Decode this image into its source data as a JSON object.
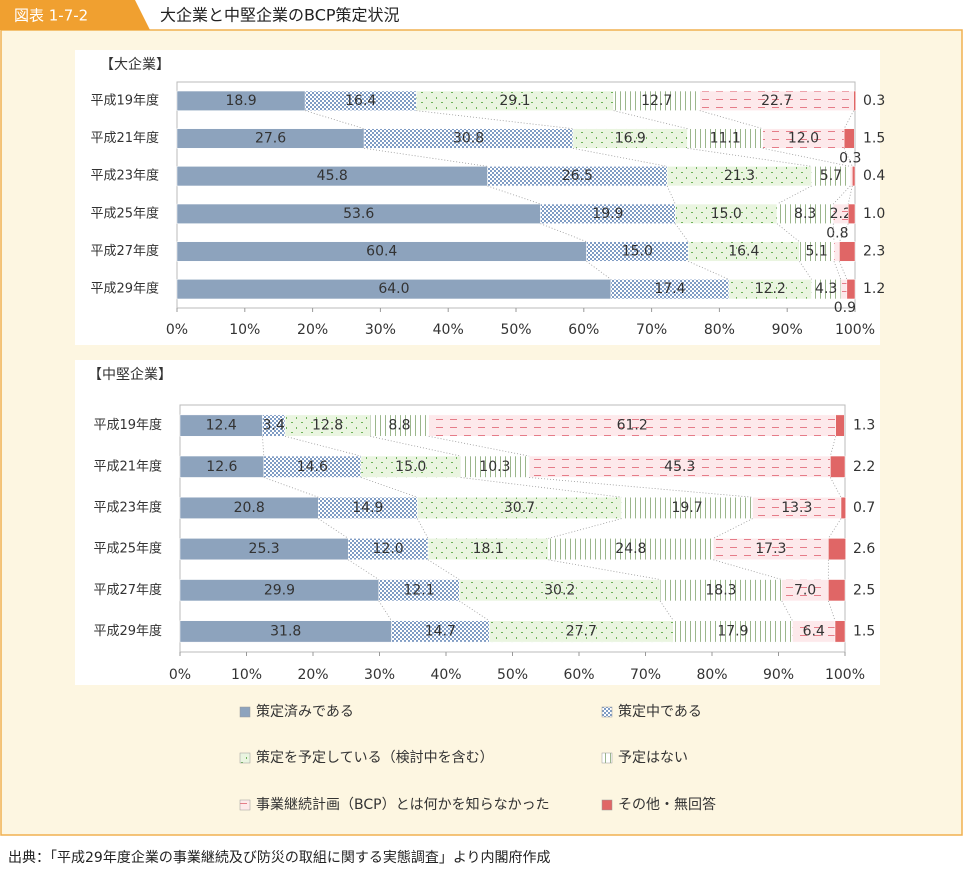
{
  "header": {
    "label": "図表 1-7-2",
    "title": "大企業と中堅企業のBCP策定状況"
  },
  "chart_data": [
    {
      "type": "bar",
      "stacked": true,
      "subtitle": "【大企業】",
      "categories": [
        "平成19年度",
        "平成21年度",
        "平成23年度",
        "平成25年度",
        "平成27年度",
        "平成29年度"
      ],
      "series": [
        {
          "name": "策定済みである",
          "color": "#8da3bd",
          "values": [
            18.9,
            27.6,
            45.8,
            53.6,
            60.4,
            64.0
          ],
          "value_labels": [
            "18.9",
            "27.6",
            "45.8",
            "53.6",
            "60.4",
            "64.0"
          ]
        },
        {
          "name": "策定中である",
          "color": "#7f9cc4",
          "values": [
            16.4,
            30.8,
            26.5,
            19.9,
            15.0,
            17.4
          ],
          "value_labels": [
            "16.4",
            "30.8",
            "26.5",
            "19.9",
            "15.0",
            "17.4"
          ]
        },
        {
          "name": "策定を予定している（検討中を含む）",
          "color": "#6fb35a",
          "values": [
            29.1,
            16.9,
            21.3,
            15.0,
            16.4,
            12.2
          ],
          "value_labels": [
            "29.1",
            "16.9",
            "21.3",
            "15.0",
            "16.4",
            "12.2"
          ]
        },
        {
          "name": "予定はない",
          "color": "#9bb68c",
          "values": [
            12.7,
            11.1,
            5.7,
            8.3,
            5.1,
            4.3
          ],
          "value_labels": [
            "12.7",
            "11.1",
            "5.7",
            "8.3",
            "5.1",
            "4.3"
          ]
        },
        {
          "name": "事業継続計画（BCP）とは何かを知らなかった",
          "color": "#e57c88",
          "values": [
            22.7,
            12.0,
            0.3,
            2.2,
            0.8,
            0.9
          ],
          "value_labels": [
            "22.7",
            "12.0",
            "0.3",
            "2.2",
            "0.8",
            "0.9"
          ]
        },
        {
          "name": "その他・無回答",
          "color": "#e06666",
          "values": [
            0.3,
            1.5,
            0.4,
            1.0,
            2.3,
            1.2
          ],
          "value_labels": [
            "0.3",
            "1.5",
            "0.4",
            "1.0",
            "2.3",
            "1.2"
          ]
        }
      ],
      "xlim": [
        0,
        100
      ],
      "xticks": [
        {
          "value": 0,
          "label": "0%"
        },
        {
          "value": 10,
          "label": "10%"
        },
        {
          "value": 20,
          "label": "20%"
        },
        {
          "value": 30,
          "label": "30%"
        },
        {
          "value": 40,
          "label": "40%"
        },
        {
          "value": 50,
          "label": "50%"
        },
        {
          "value": 60,
          "label": "60%"
        },
        {
          "value": 70,
          "label": "70%"
        },
        {
          "value": 80,
          "label": "80%"
        },
        {
          "value": 90,
          "label": "90%"
        },
        {
          "value": 100,
          "label": "100%"
        }
      ]
    },
    {
      "type": "bar",
      "stacked": true,
      "subtitle": "【中堅企業】",
      "categories": [
        "平成19年度",
        "平成21年度",
        "平成23年度",
        "平成25年度",
        "平成27年度",
        "平成29年度"
      ],
      "series": [
        {
          "name": "策定済みである",
          "color": "#8da3bd",
          "values": [
            12.4,
            12.6,
            20.8,
            25.3,
            29.9,
            31.8
          ],
          "value_labels": [
            "12.4",
            "12.6",
            "20.8",
            "25.3",
            "29.9",
            "31.8"
          ]
        },
        {
          "name": "策定中である",
          "color": "#7f9cc4",
          "values": [
            3.4,
            14.6,
            14.9,
            12.0,
            12.1,
            14.7
          ],
          "value_labels": [
            "3.4",
            "14.6",
            "14.9",
            "12.0",
            "12.1",
            "14.7"
          ]
        },
        {
          "name": "策定を予定している（検討中を含む）",
          "color": "#6fb35a",
          "values": [
            12.8,
            15.0,
            30.7,
            18.1,
            30.2,
            27.7
          ],
          "value_labels": [
            "12.8",
            "15.0",
            "30.7",
            "18.1",
            "30.2",
            "27.7"
          ]
        },
        {
          "name": "予定はない",
          "color": "#9bb68c",
          "values": [
            8.8,
            10.3,
            19.7,
            24.8,
            18.3,
            17.9
          ],
          "value_labels": [
            "8.8",
            "10.3",
            "19.7",
            "24.8",
            "18.3",
            "17.9"
          ]
        },
        {
          "name": "事業継続計画（BCP）とは何かを知らなかった",
          "color": "#e57c88",
          "values": [
            61.2,
            45.3,
            13.3,
            17.3,
            7.0,
            6.4
          ],
          "value_labels": [
            "61.2",
            "45.3",
            "13.3",
            "17.3",
            "7.0",
            "6.4"
          ]
        },
        {
          "name": "その他・無回答",
          "color": "#e06666",
          "values": [
            1.3,
            2.2,
            0.7,
            2.6,
            2.5,
            1.5
          ],
          "value_labels": [
            "1.3",
            "2.2",
            "0.7",
            "2.6",
            "2.5",
            "1.5"
          ]
        }
      ],
      "xlim": [
        0,
        100
      ],
      "xticks": [
        {
          "value": 0,
          "label": "0%"
        },
        {
          "value": 10,
          "label": "10%"
        },
        {
          "value": 20,
          "label": "20%"
        },
        {
          "value": 30,
          "label": "30%"
        },
        {
          "value": 40,
          "label": "40%"
        },
        {
          "value": 50,
          "label": "50%"
        },
        {
          "value": 60,
          "label": "60%"
        },
        {
          "value": 70,
          "label": "70%"
        },
        {
          "value": 80,
          "label": "80%"
        },
        {
          "value": 90,
          "label": "90%"
        },
        {
          "value": 100,
          "label": "100%"
        }
      ]
    }
  ],
  "source": "出典：「平成29年度企業の事業継続及び防災の取組に関する実態調査」より内閣府作成"
}
